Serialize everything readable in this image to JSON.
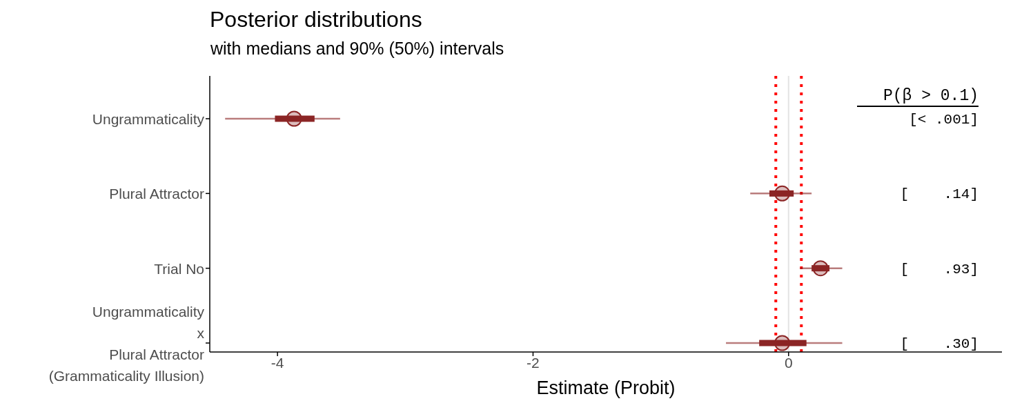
{
  "chart_data": {
    "type": "box",
    "orientation": "horizontal",
    "title": "Posterior distributions",
    "subtitle": "with medians and 90% (50%) intervals",
    "xlabel": "Estimate (Probit)",
    "categories": [
      "Ungrammaticality",
      "Plural Attractor",
      "Trial No",
      "Ungrammaticality\nx\nPlural Attractor\n(Grammaticality Illusion)"
    ],
    "color": "#8b2525",
    "boxes": [
      {
        "low": -4.41,
        "q1": -4.02,
        "median": -3.87,
        "q3": -3.71,
        "high": -3.51
      },
      {
        "low": -0.3,
        "q1": -0.15,
        "median": -0.05,
        "q3": 0.04,
        "high": 0.18
      },
      {
        "low": 0.09,
        "q1": 0.18,
        "median": 0.25,
        "q3": 0.32,
        "high": 0.42
      },
      {
        "low": -0.49,
        "q1": -0.23,
        "median": -0.05,
        "q3": 0.14,
        "high": 0.42
      }
    ],
    "xlim": [
      -4.53,
      1.67
    ],
    "xticks": [
      -4,
      -2,
      0
    ],
    "ref_lines": [
      {
        "axis": "x",
        "value": 0,
        "color": "#e3e3e3",
        "line_style": "solid"
      },
      {
        "axis": "x",
        "value": -0.1,
        "color": "#ff0000",
        "line_style": "dotted"
      },
      {
        "axis": "x",
        "value": 0.1,
        "color": "#ff0000",
        "line_style": "dotted"
      }
    ],
    "annotations": [
      "P(β > 0.1)",
      "[< .001]",
      "[    .14]",
      "[    .93]",
      "[    .30]"
    ],
    "grid": false,
    "legend": false
  }
}
